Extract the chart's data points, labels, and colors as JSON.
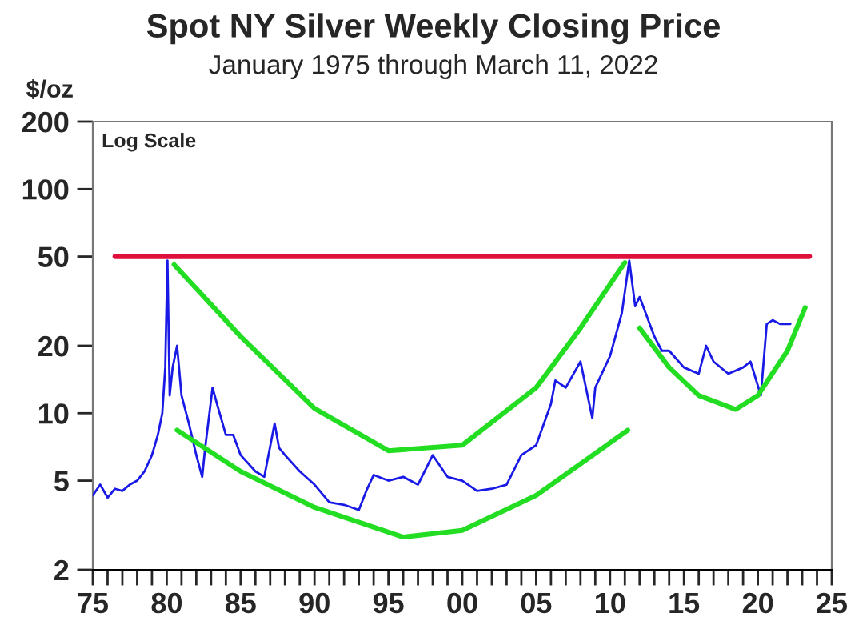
{
  "chart_data": {
    "type": "line",
    "title": "Spot NY Silver Weekly Closing Price",
    "subtitle": "January 1975 through March 11, 2022",
    "ylabel": "$/oz",
    "annotations": [
      "Log Scale"
    ],
    "log": "y",
    "grid": false,
    "marker": "none",
    "line_style": "solid",
    "xlim": [
      1975,
      2025
    ],
    "ylim": [
      2,
      200
    ],
    "xticks": [
      {
        "value": 1975,
        "label": "75"
      },
      {
        "value": 1976,
        "label": null
      },
      {
        "value": 1977,
        "label": null
      },
      {
        "value": 1978,
        "label": null
      },
      {
        "value": 1979,
        "label": null
      },
      {
        "value": 1980,
        "label": "80"
      },
      {
        "value": 1981,
        "label": null
      },
      {
        "value": 1982,
        "label": null
      },
      {
        "value": 1983,
        "label": null
      },
      {
        "value": 1984,
        "label": null
      },
      {
        "value": 1985,
        "label": "85"
      },
      {
        "value": 1986,
        "label": null
      },
      {
        "value": 1987,
        "label": null
      },
      {
        "value": 1988,
        "label": null
      },
      {
        "value": 1989,
        "label": null
      },
      {
        "value": 1990,
        "label": "90"
      },
      {
        "value": 1991,
        "label": null
      },
      {
        "value": 1992,
        "label": null
      },
      {
        "value": 1993,
        "label": null
      },
      {
        "value": 1994,
        "label": null
      },
      {
        "value": 1995,
        "label": "95"
      },
      {
        "value": 1996,
        "label": null
      },
      {
        "value": 1997,
        "label": null
      },
      {
        "value": 1998,
        "label": null
      },
      {
        "value": 1999,
        "label": null
      },
      {
        "value": 2000,
        "label": "00"
      },
      {
        "value": 2001,
        "label": null
      },
      {
        "value": 2002,
        "label": null
      },
      {
        "value": 2003,
        "label": null
      },
      {
        "value": 2004,
        "label": null
      },
      {
        "value": 2005,
        "label": "05"
      },
      {
        "value": 2006,
        "label": null
      },
      {
        "value": 2007,
        "label": null
      },
      {
        "value": 2008,
        "label": null
      },
      {
        "value": 2009,
        "label": null
      },
      {
        "value": 2010,
        "label": "10"
      },
      {
        "value": 2011,
        "label": null
      },
      {
        "value": 2012,
        "label": null
      },
      {
        "value": 2013,
        "label": null
      },
      {
        "value": 2014,
        "label": null
      },
      {
        "value": 2015,
        "label": "15"
      },
      {
        "value": 2016,
        "label": null
      },
      {
        "value": 2017,
        "label": null
      },
      {
        "value": 2018,
        "label": null
      },
      {
        "value": 2019,
        "label": null
      },
      {
        "value": 2020,
        "label": "20"
      },
      {
        "value": 2021,
        "label": null
      },
      {
        "value": 2022,
        "label": null
      },
      {
        "value": 2023,
        "label": null
      },
      {
        "value": 2024,
        "label": null
      },
      {
        "value": 2025,
        "label": "25"
      }
    ],
    "yticks": [
      2,
      5,
      10,
      20,
      50,
      100,
      200
    ],
    "series": [
      {
        "color": "#e0103c",
        "x": [
          1976.5,
          2023.5
        ],
        "values": [
          50,
          50
        ]
      },
      {
        "color": "#1a1ae6",
        "x": [
          1975,
          1975.5,
          1976,
          1976.5,
          1977,
          1977.5,
          1978,
          1978.5,
          1979,
          1979.4,
          1979.7,
          1979.9,
          1980.05,
          1980.2,
          1980.4,
          1980.7,
          1981,
          1981.5,
          1982,
          1982.4,
          1982.6,
          1983.1,
          1983.4,
          1984,
          1984.5,
          1985,
          1986,
          1986.6,
          1987.3,
          1987.6,
          1988,
          1989,
          1990,
          1991,
          1992,
          1993,
          1993.5,
          1994,
          1995,
          1996,
          1997,
          1998,
          1999,
          2000,
          2001,
          2002,
          2003,
          2004,
          2005,
          2006,
          2006.3,
          2007,
          2008,
          2008.8,
          2009,
          2010,
          2010.8,
          2011.3,
          2011.7,
          2012,
          2013,
          2013.5,
          2014,
          2015,
          2016,
          2016.5,
          2017,
          2018,
          2019,
          2019.5,
          2020.2,
          2020.6,
          2021,
          2021.5,
          2022.2
        ],
        "values": [
          4.3,
          4.8,
          4.2,
          4.6,
          4.5,
          4.8,
          5.0,
          5.5,
          6.5,
          8,
          10,
          16,
          48,
          12,
          16,
          20,
          12,
          9,
          6.5,
          5.2,
          7,
          13,
          11,
          8,
          8,
          6.5,
          5.5,
          5.2,
          9,
          7,
          6.5,
          5.5,
          4.8,
          4,
          3.9,
          3.7,
          4.5,
          5.3,
          5.0,
          5.2,
          4.8,
          6.5,
          5.2,
          5.0,
          4.5,
          4.6,
          4.8,
          6.5,
          7.2,
          11,
          14,
          13,
          17,
          9.5,
          13,
          18,
          28,
          48,
          30,
          33,
          22,
          19,
          19,
          16,
          15,
          20,
          17,
          15,
          16,
          17,
          12,
          25,
          26,
          25,
          25
        ]
      },
      {
        "color": "#22dd22",
        "x": [
          1980.5,
          1985,
          1990,
          1995,
          2000,
          2005,
          2008,
          2011
        ],
        "values": [
          46,
          22,
          10.5,
          6.8,
          7.2,
          13,
          24,
          47
        ]
      },
      {
        "color": "#22dd22",
        "x": [
          1980.7,
          1985,
          1990,
          1996,
          2000,
          2005,
          2011.2
        ],
        "values": [
          8.4,
          5.5,
          3.8,
          2.8,
          3.0,
          4.3,
          8.4
        ]
      },
      {
        "color": "#22dd22",
        "x": [
          2012,
          2014,
          2016,
          2018.5,
          2020,
          2022,
          2023.2
        ],
        "values": [
          24,
          16,
          12,
          10.4,
          12,
          19,
          29.6
        ]
      }
    ]
  }
}
